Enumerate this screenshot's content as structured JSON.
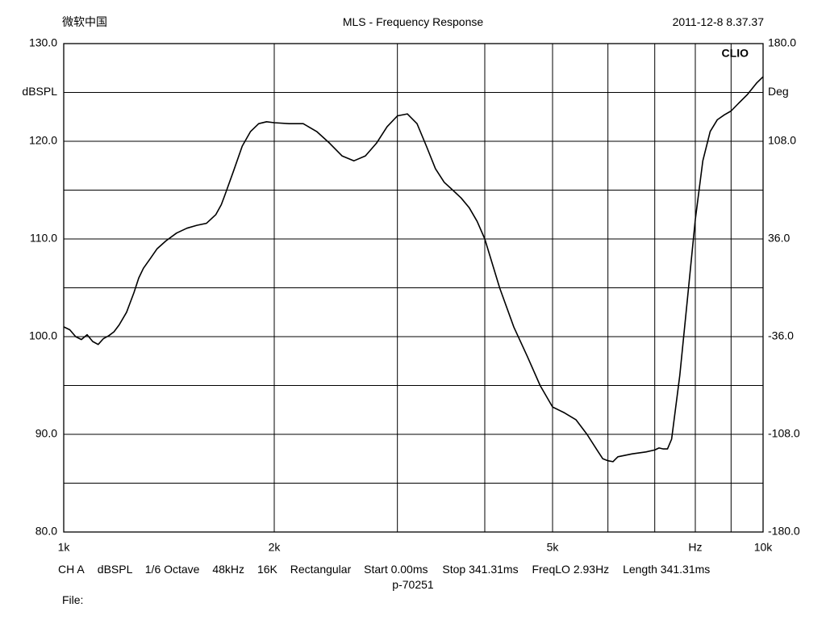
{
  "header": {
    "left": "微软中国",
    "title": "MLS - Frequency Response",
    "timestamp": "2011-12-8 8.37.37"
  },
  "footer": {
    "settings": [
      "CH A",
      "dBSPL",
      "1/6 Octave",
      "48kHz",
      "16K",
      "Rectangular",
      "Start 0.00ms",
      "Stop 341.31ms",
      "FreqLO 2.93Hz",
      "Length 341.31ms"
    ],
    "file_id": "p-70251",
    "file_label": "File:"
  },
  "chart_data": {
    "type": "line",
    "brand": "CLIO",
    "x_scale": "log",
    "xlim": [
      1000,
      10000
    ],
    "x_ticks": [
      {
        "value": 1000,
        "label": "1k"
      },
      {
        "value": 2000,
        "label": "2k"
      },
      {
        "value": 5000,
        "label": "5k"
      },
      {
        "value": 8000,
        "label": "Hz"
      },
      {
        "value": 10000,
        "label": "10k"
      }
    ],
    "x_gridlines": [
      1000,
      2000,
      3000,
      4000,
      5000,
      6000,
      7000,
      8000,
      9000,
      10000
    ],
    "ylim": [
      80,
      130
    ],
    "ylabel": "dBSPL",
    "y_ticks": [
      {
        "value": 130,
        "label": "130.0"
      },
      {
        "value": 120,
        "label": "120.0"
      },
      {
        "value": 110,
        "label": "110.0"
      },
      {
        "value": 100,
        "label": "100.0"
      },
      {
        "value": 90,
        "label": "90.0"
      },
      {
        "value": 80,
        "label": "80.0"
      }
    ],
    "ylabel_at": 125,
    "y_gridlines": [
      80,
      85,
      90,
      95,
      100,
      105,
      110,
      115,
      120,
      125,
      130
    ],
    "y2lim": [
      -180,
      180
    ],
    "y2label": "Deg",
    "y2_ticks": [
      {
        "value": 180,
        "label": "180.0"
      },
      {
        "value": 108,
        "label": "108.0"
      },
      {
        "value": 36,
        "label": "36.0"
      },
      {
        "value": -36,
        "label": "-36.0"
      },
      {
        "value": -108,
        "label": "-108.0"
      },
      {
        "value": -180,
        "label": "-180.0"
      }
    ],
    "grid": true,
    "series": [
      {
        "color": "#000000",
        "x": [
          1000,
          1020,
          1040,
          1060,
          1080,
          1100,
          1120,
          1140,
          1160,
          1180,
          1200,
          1230,
          1260,
          1280,
          1300,
          1330,
          1360,
          1400,
          1450,
          1500,
          1550,
          1600,
          1650,
          1680,
          1700,
          1750,
          1800,
          1850,
          1900,
          1950,
          2000,
          2100,
          2200,
          2300,
          2400,
          2500,
          2600,
          2700,
          2800,
          2900,
          3000,
          3100,
          3200,
          3300,
          3400,
          3500,
          3600,
          3700,
          3800,
          3900,
          4000,
          4200,
          4400,
          4600,
          4800,
          5000,
          5200,
          5400,
          5600,
          5800,
          5900,
          6000,
          6100,
          6200,
          6500,
          6800,
          7000,
          7100,
          7200,
          7300,
          7400,
          7600,
          7800,
          8000,
          8200,
          8400,
          8600,
          8800,
          9000,
          9200,
          9500,
          9800,
          10000
        ],
        "values": [
          101.0,
          100.7,
          100.0,
          99.7,
          100.2,
          99.5,
          99.2,
          99.8,
          100.1,
          100.5,
          101.2,
          102.5,
          104.5,
          106.0,
          107.0,
          108.0,
          109.0,
          109.8,
          110.6,
          111.1,
          111.4,
          111.6,
          112.5,
          113.5,
          114.5,
          117.0,
          119.5,
          121.0,
          121.8,
          122.0,
          121.9,
          121.8,
          121.8,
          121.0,
          119.8,
          118.5,
          118.0,
          118.5,
          119.8,
          121.5,
          122.6,
          122.8,
          121.8,
          119.5,
          117.2,
          115.8,
          115.0,
          114.2,
          113.2,
          111.8,
          110.0,
          105.0,
          101.0,
          98.0,
          95.0,
          92.8,
          92.2,
          91.5,
          90.0,
          88.3,
          87.5,
          87.3,
          87.2,
          87.7,
          88.0,
          88.2,
          88.4,
          88.6,
          88.5,
          88.5,
          89.5,
          96.0,
          104.0,
          112.0,
          118.0,
          121.0,
          122.2,
          122.7,
          123.1,
          123.8,
          124.8,
          126.0,
          126.6
        ]
      }
    ]
  }
}
